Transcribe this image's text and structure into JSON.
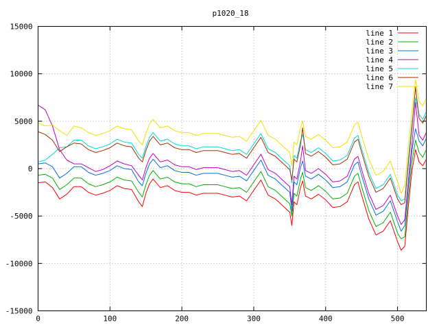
{
  "chart_data": {
    "type": "line",
    "title": "p1020_18",
    "xlabel": "",
    "ylabel": "",
    "xlim": [
      0,
      540
    ],
    "ylim": [
      -15000,
      15000
    ],
    "x_ticks": [
      "0",
      "100",
      "200",
      "300",
      "400",
      "500"
    ],
    "y_ticks": [
      "-15000",
      "-10000",
      "-5000",
      "0",
      "5000",
      "10000",
      "15000"
    ],
    "grid": true,
    "legend_position": "top-right",
    "x": [
      0,
      10,
      20,
      30,
      40,
      50,
      60,
      70,
      80,
      90,
      100,
      110,
      120,
      130,
      140,
      145,
      150,
      155,
      160,
      170,
      180,
      190,
      200,
      210,
      220,
      230,
      240,
      250,
      260,
      270,
      280,
      290,
      300,
      310,
      320,
      330,
      340,
      350,
      353,
      356,
      360,
      365,
      368,
      372,
      380,
      390,
      400,
      410,
      420,
      430,
      440,
      445,
      450,
      460,
      470,
      480,
      490,
      500,
      505,
      510,
      515,
      520,
      525,
      530,
      535,
      540
    ],
    "series": [
      {
        "name": "line 1",
        "color": "#ff0000",
        "values": [
          -1500,
          -1400,
          -2000,
          -3200,
          -2700,
          -1900,
          -1900,
          -2500,
          -2800,
          -2600,
          -2300,
          -1800,
          -2100,
          -2200,
          -3500,
          -4000,
          -2600,
          -1600,
          -1100,
          -2000,
          -1800,
          -2300,
          -2500,
          -2500,
          -2800,
          -2600,
          -2600,
          -2600,
          -2800,
          -3000,
          -2900,
          -3400,
          -2300,
          -1200,
          -2800,
          -3200,
          -3900,
          -4600,
          -6000,
          -3500,
          -3800,
          -2000,
          -1300,
          -2900,
          -3200,
          -2700,
          -3300,
          -4100,
          -4000,
          -3500,
          -1700,
          -1400,
          -2800,
          -5300,
          -7000,
          -6600,
          -5500,
          -7700,
          -8600,
          -8200,
          -4000,
          -300,
          2000,
          700,
          300,
          1000
        ]
      },
      {
        "name": "line 2",
        "color": "#00b000",
        "values": [
          -700,
          -600,
          -1000,
          -2200,
          -1700,
          -1000,
          -1000,
          -1600,
          -1900,
          -1700,
          -1400,
          -900,
          -1200,
          -1300,
          -2500,
          -3000,
          -1700,
          -700,
          -200,
          -1100,
          -900,
          -1400,
          -1600,
          -1600,
          -1900,
          -1700,
          -1700,
          -1700,
          -1900,
          -2100,
          -2000,
          -2500,
          -1400,
          -300,
          -1900,
          -2300,
          -3000,
          -3700,
          -5000,
          -2600,
          -2900,
          -1100,
          -400,
          -2000,
          -2300,
          -1800,
          -2400,
          -3200,
          -3100,
          -2600,
          -800,
          -500,
          -1900,
          -4400,
          -6100,
          -5700,
          -4600,
          -6800,
          -7400,
          -7200,
          -3000,
          700,
          3000,
          1700,
          1200,
          2000
        ]
      },
      {
        "name": "line 3",
        "color": "#0070e0",
        "values": [
          500,
          600,
          200,
          -1000,
          -500,
          200,
          200,
          -400,
          -700,
          -500,
          -200,
          300,
          0,
          -100,
          -1400,
          -1800,
          -500,
          500,
          1000,
          100,
          300,
          -200,
          -400,
          -400,
          -700,
          -500,
          -500,
          -500,
          -700,
          -900,
          -800,
          -1300,
          -200,
          900,
          -700,
          -1100,
          -1800,
          -2500,
          -4500,
          -1400,
          -1700,
          100,
          800,
          -800,
          -1100,
          -600,
          -1200,
          -2000,
          -1900,
          -1400,
          400,
          700,
          -700,
          -3200,
          -4900,
          -4500,
          -3400,
          -5600,
          -6600,
          -6000,
          -1900,
          1900,
          4200,
          2900,
          2400,
          3200
        ]
      },
      {
        "name": "line 4",
        "color": "#c000c0",
        "values": [
          6700,
          6200,
          4500,
          2000,
          900,
          500,
          500,
          100,
          -300,
          -100,
          300,
          800,
          500,
          300,
          -700,
          -1200,
          100,
          1100,
          1600,
          700,
          900,
          400,
          200,
          200,
          -100,
          100,
          100,
          100,
          -100,
          -300,
          -200,
          -700,
          400,
          1500,
          -100,
          -500,
          -1200,
          -1900,
          -3800,
          -800,
          -1100,
          800,
          2400,
          -200,
          -500,
          0,
          -600,
          -1400,
          -1300,
          -800,
          1000,
          1300,
          -100,
          -2600,
          -4300,
          -3900,
          -2800,
          -5000,
          -5900,
          -5400,
          -1300,
          2500,
          7000,
          3500,
          3000,
          3800
        ]
      },
      {
        "name": "line 5",
        "color": "#00d8d8",
        "values": [
          700,
          900,
          1500,
          2200,
          2300,
          3000,
          3000,
          2400,
          2100,
          2300,
          2600,
          3100,
          2800,
          2700,
          1500,
          1100,
          2300,
          3300,
          3800,
          2900,
          3100,
          2600,
          2400,
          2400,
          2100,
          2300,
          2300,
          2300,
          2100,
          1900,
          2000,
          1500,
          2600,
          3700,
          2100,
          1700,
          1000,
          300,
          -1500,
          1400,
          1100,
          2900,
          3600,
          2000,
          1700,
          2200,
          1600,
          800,
          900,
          1400,
          3200,
          3500,
          2100,
          -400,
          -2100,
          -1700,
          -600,
          -2800,
          -3400,
          -3200,
          900,
          4700,
          7500,
          5700,
          5200,
          6000
        ]
      },
      {
        "name": "line 6",
        "color": "#a03000",
        "values": [
          3900,
          3600,
          3000,
          1800,
          2300,
          2700,
          2600,
          2000,
          1700,
          1900,
          2200,
          2700,
          2400,
          2300,
          1100,
          700,
          1900,
          2900,
          3400,
          2500,
          2700,
          2200,
          2000,
          2000,
          1700,
          1900,
          1900,
          1900,
          1700,
          1500,
          1600,
          1100,
          2200,
          3300,
          1700,
          1300,
          600,
          -100,
          -1200,
          1000,
          700,
          2500,
          4300,
          1600,
          1300,
          1800,
          1200,
          400,
          500,
          1000,
          2800,
          3100,
          1700,
          -800,
          -2500,
          -2100,
          -1000,
          -3200,
          -3800,
          -3600,
          500,
          4300,
          8600,
          5300,
          4800,
          5600
        ]
      },
      {
        "name": "line 7",
        "color": "#f0e000",
        "values": [
          4800,
          4500,
          4600,
          4000,
          3500,
          4500,
          4300,
          3800,
          3500,
          3700,
          4000,
          4500,
          4200,
          4100,
          2900,
          2500,
          3700,
          4700,
          5200,
          4300,
          4500,
          4000,
          3800,
          3800,
          3500,
          3700,
          3700,
          3700,
          3500,
          3300,
          3400,
          2900,
          4000,
          5100,
          3500,
          3100,
          2400,
          1700,
          300,
          2800,
          2500,
          4300,
          5000,
          3400,
          3100,
          3600,
          3000,
          2200,
          2300,
          2800,
          4600,
          4900,
          3500,
          1000,
          -700,
          -300,
          800,
          -1400,
          -2600,
          -1800,
          2300,
          6100,
          9400,
          7100,
          6600,
          7400
        ]
      }
    ]
  }
}
